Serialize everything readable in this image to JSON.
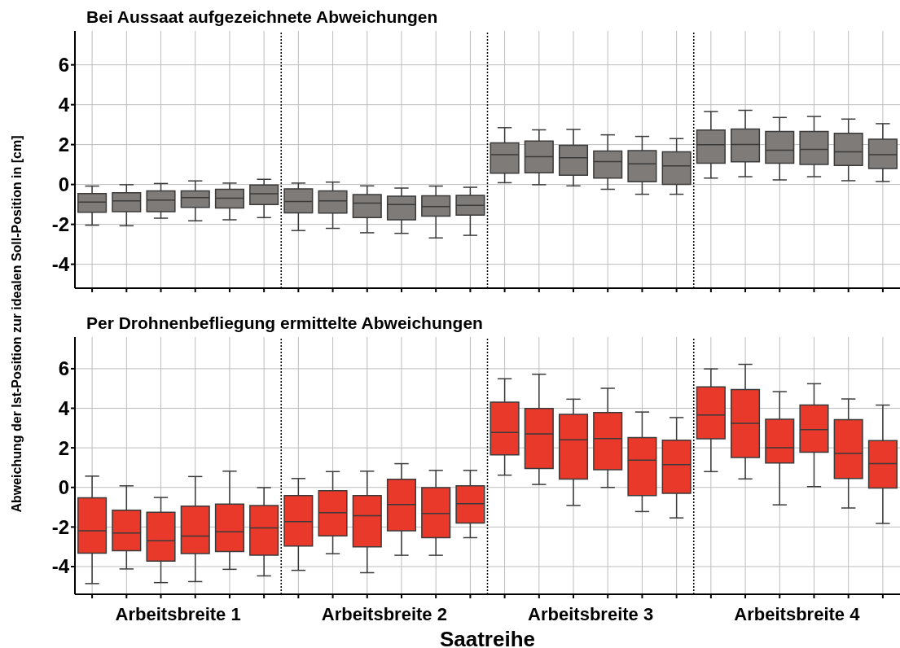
{
  "chart_data": [
    {
      "type": "box",
      "title": "Bei Aussaat aufgezeichnete Abweichungen",
      "ylabel": "Abweichung der Ist-Position zur idealen Soll-Position in [cm]",
      "categories": [
        null,
        null,
        null,
        null,
        null,
        null,
        null,
        null,
        null,
        null,
        null,
        null,
        null,
        null,
        null,
        null,
        null,
        null,
        null,
        null,
        null,
        null,
        null,
        null
      ],
      "ylim": [
        -5.2,
        7.7
      ],
      "yticks": [
        -4,
        -2,
        0,
        2,
        4,
        6
      ],
      "grid": true,
      "series": [
        {
          "color": "#7f7b78",
          "boxes": [
            {
              "low": -2.04,
              "q1": -1.39,
              "median": -0.88,
              "q3": -0.45,
              "high": -0.08
            },
            {
              "low": -2.07,
              "q1": -1.36,
              "median": -0.82,
              "q3": -0.41,
              "high": -0.01
            },
            {
              "low": -1.69,
              "q1": -1.36,
              "median": -0.78,
              "q3": -0.32,
              "high": 0.05
            },
            {
              "low": -1.82,
              "q1": -1.15,
              "median": -0.66,
              "q3": -0.32,
              "high": 0.18
            },
            {
              "low": -1.77,
              "q1": -1.18,
              "median": -0.69,
              "q3": -0.24,
              "high": 0.07
            },
            {
              "low": -1.66,
              "q1": -1.01,
              "median": -0.46,
              "q3": -0.03,
              "high": 0.26
            },
            {
              "low": -2.31,
              "q1": -1.42,
              "median": -0.85,
              "q3": -0.22,
              "high": 0.07
            },
            {
              "low": -2.2,
              "q1": -1.43,
              "median": -0.82,
              "q3": -0.32,
              "high": 0.12
            },
            {
              "low": -2.42,
              "q1": -1.66,
              "median": -0.93,
              "q3": -0.51,
              "high": -0.07
            },
            {
              "low": -2.45,
              "q1": -1.77,
              "median": -1.01,
              "q3": -0.59,
              "high": -0.18
            },
            {
              "low": -2.68,
              "q1": -1.59,
              "median": -1.11,
              "q3": -0.57,
              "high": -0.08
            },
            {
              "low": -2.55,
              "q1": -1.54,
              "median": -1.05,
              "q3": -0.55,
              "high": -0.14
            },
            {
              "low": 0.09,
              "q1": 0.57,
              "median": 1.49,
              "q3": 2.09,
              "high": 2.85
            },
            {
              "low": -0.01,
              "q1": 0.59,
              "median": 1.39,
              "q3": 2.18,
              "high": 2.74
            },
            {
              "low": -0.07,
              "q1": 0.46,
              "median": 1.34,
              "q3": 1.96,
              "high": 2.76
            },
            {
              "low": -0.24,
              "q1": 0.32,
              "median": 1.15,
              "q3": 1.68,
              "high": 2.49
            },
            {
              "low": -0.49,
              "q1": 0.14,
              "median": 1.04,
              "q3": 1.7,
              "high": 2.41
            },
            {
              "low": -0.49,
              "q1": 0.01,
              "median": 0.93,
              "q3": 1.64,
              "high": 2.3
            },
            {
              "low": 0.32,
              "q1": 1.07,
              "median": 2.0,
              "q3": 2.73,
              "high": 3.66
            },
            {
              "low": 0.39,
              "q1": 1.14,
              "median": 2.01,
              "q3": 2.78,
              "high": 3.72
            },
            {
              "low": 0.23,
              "q1": 1.07,
              "median": 1.72,
              "q3": 2.66,
              "high": 3.36
            },
            {
              "low": 0.39,
              "q1": 1.0,
              "median": 1.76,
              "q3": 2.66,
              "high": 3.41
            },
            {
              "low": 0.19,
              "q1": 0.95,
              "median": 1.64,
              "q3": 2.57,
              "high": 3.28
            },
            {
              "low": 0.15,
              "q1": 0.8,
              "median": 1.49,
              "q3": 2.27,
              "high": 3.05
            }
          ]
        }
      ]
    },
    {
      "type": "box",
      "title": "Per Drohnenbefliegung ermittelte Abweichungen",
      "xlabel": "Saatreihe",
      "categories": [
        null,
        null,
        null,
        null,
        null,
        null,
        null,
        null,
        null,
        null,
        null,
        null,
        null,
        null,
        null,
        null,
        null,
        null,
        null,
        null,
        null,
        null,
        null,
        null
      ],
      "ylim": [
        -5.4,
        7.6
      ],
      "yticks": [
        -4,
        -2,
        0,
        2,
        4,
        6
      ],
      "grid": true,
      "annotations": [
        "Arbeitsbreite 1",
        "Arbeitsbreite 2",
        "Arbeitsbreite 3",
        "Arbeitsbreite 4"
      ],
      "series": [
        {
          "color": "#e8392a",
          "boxes": [
            {
              "low": -4.86,
              "q1": -3.32,
              "median": -2.19,
              "q3": -0.53,
              "high": 0.57
            },
            {
              "low": -4.12,
              "q1": -3.2,
              "median": -2.3,
              "q3": -1.15,
              "high": 0.08
            },
            {
              "low": -4.81,
              "q1": -3.72,
              "median": -2.69,
              "q3": -1.26,
              "high": -0.51
            },
            {
              "low": -4.76,
              "q1": -3.34,
              "median": -2.46,
              "q3": -0.95,
              "high": 0.55
            },
            {
              "low": -4.14,
              "q1": -3.24,
              "median": -2.24,
              "q3": -0.84,
              "high": 0.82
            },
            {
              "low": -4.47,
              "q1": -3.43,
              "median": -2.05,
              "q3": -0.92,
              "high": -0.01
            },
            {
              "low": -4.19,
              "q1": -2.96,
              "median": -1.73,
              "q3": -0.41,
              "high": 0.45
            },
            {
              "low": -3.35,
              "q1": -2.45,
              "median": -1.28,
              "q3": -0.16,
              "high": 0.8
            },
            {
              "low": -4.31,
              "q1": -3.0,
              "median": -1.43,
              "q3": -0.41,
              "high": 0.82
            },
            {
              "low": -3.43,
              "q1": -2.19,
              "median": -0.86,
              "q3": 0.41,
              "high": 1.2
            },
            {
              "low": -3.43,
              "q1": -2.54,
              "median": -1.32,
              "q3": -0.01,
              "high": 0.86
            },
            {
              "low": -2.54,
              "q1": -1.8,
              "median": -0.82,
              "q3": 0.08,
              "high": 0.86
            },
            {
              "low": 0.62,
              "q1": 1.65,
              "median": 2.78,
              "q3": 4.31,
              "high": 5.49
            },
            {
              "low": 0.15,
              "q1": 0.96,
              "median": 2.7,
              "q3": 3.99,
              "high": 5.72
            },
            {
              "low": -0.91,
              "q1": 0.42,
              "median": 2.41,
              "q3": 3.69,
              "high": 4.46
            },
            {
              "low": 0.0,
              "q1": 0.89,
              "median": 2.47,
              "q3": 3.78,
              "high": 5.01
            },
            {
              "low": -1.22,
              "q1": -0.41,
              "median": 1.38,
              "q3": 2.52,
              "high": 3.81
            },
            {
              "low": -1.54,
              "q1": -0.3,
              "median": 1.15,
              "q3": 2.39,
              "high": 3.53
            },
            {
              "low": 0.8,
              "q1": 2.46,
              "median": 3.66,
              "q3": 5.08,
              "high": 5.99
            },
            {
              "low": 0.43,
              "q1": 1.51,
              "median": 3.24,
              "q3": 4.95,
              "high": 6.22
            },
            {
              "low": -0.88,
              "q1": 1.23,
              "median": 2.0,
              "q3": 3.45,
              "high": 4.84
            },
            {
              "low": 0.04,
              "q1": 1.78,
              "median": 2.92,
              "q3": 4.16,
              "high": 5.24
            },
            {
              "low": -1.04,
              "q1": 0.45,
              "median": 1.72,
              "q3": 3.42,
              "high": 4.47
            },
            {
              "low": -1.82,
              "q1": -0.03,
              "median": 1.2,
              "q3": 2.36,
              "high": 4.16
            }
          ]
        }
      ]
    }
  ]
}
